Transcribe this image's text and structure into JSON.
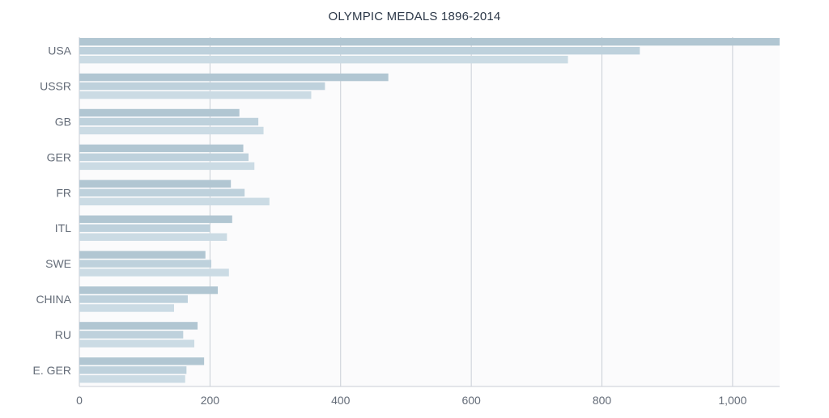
{
  "chart_data": {
    "type": "bar",
    "orientation": "horizontal",
    "title": "OLYMPIC MEDALS 1896-2014",
    "xlabel": "",
    "ylabel": "",
    "categories": [
      "USA",
      "USSR",
      "GB",
      "GER",
      "FR",
      "ITL",
      "SWE",
      "CHINA",
      "RU",
      "E. GER"
    ],
    "series": [
      {
        "values": [
          1072,
          473,
          245,
          251,
          232,
          234,
          193,
          212,
          181,
          191
        ]
      },
      {
        "values": [
          858,
          376,
          274,
          259,
          253,
          200,
          202,
          166,
          159,
          164
        ]
      },
      {
        "values": [
          748,
          355,
          282,
          268,
          291,
          226,
          229,
          145,
          176,
          162
        ]
      }
    ],
    "xlim": [
      0,
      1072
    ],
    "x_ticks": [
      0,
      200,
      400,
      600,
      800,
      1000
    ],
    "x_tick_labels": [
      "0",
      "200",
      "400",
      "600",
      "800",
      "1,000"
    ],
    "grid": true,
    "legend": "none",
    "colors": [
      "#b1c6d2",
      "#bed1dc",
      "#cbdbe4"
    ],
    "grid_color": "#c9ced6",
    "plot_background": "#fbfbfc",
    "label_color": "#646c78"
  }
}
